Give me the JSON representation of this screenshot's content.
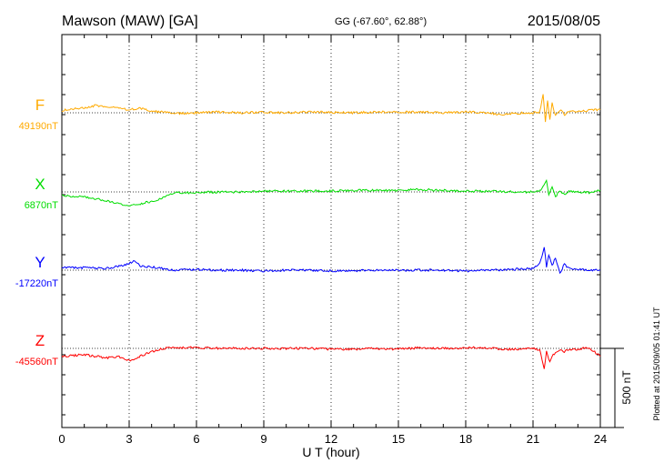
{
  "header": {
    "station": "Mawson (MAW)  [GA]",
    "coords": "GG (-67.60°,  62.88°)",
    "date": "2015/08/05"
  },
  "footer": {
    "plotted": "Plotted at 2015/09/05 01:41  UT"
  },
  "chart_data": {
    "type": "line",
    "title": "Mawson (MAW)  [GA]",
    "xlabel": "U T (hour)",
    "xlim": [
      0,
      24
    ],
    "xticks": [
      "0",
      "3",
      "6",
      "9",
      "12",
      "15",
      "18",
      "21",
      "24"
    ],
    "grid": true,
    "scale_bar": "500 nT",
    "series": [
      {
        "name": "F",
        "baseline_label": "49190nT",
        "color": "#ffaa00",
        "x": [
          0,
          0.5,
          1,
          1.5,
          2,
          2.5,
          3,
          3.5,
          4,
          4.5,
          5,
          6,
          7,
          8,
          9,
          10,
          11,
          12,
          13,
          14,
          15,
          16,
          17,
          18,
          19,
          19.5,
          20,
          21,
          21.3,
          21.45,
          21.55,
          21.65,
          21.75,
          21.85,
          22,
          22.2,
          22.4,
          22.6,
          23,
          23.5,
          24
        ],
        "y": [
          15,
          25,
          30,
          45,
          35,
          30,
          20,
          30,
          10,
          5,
          -5,
          0,
          5,
          0,
          5,
          0,
          5,
          3,
          0,
          5,
          3,
          5,
          0,
          5,
          0,
          -10,
          -5,
          0,
          5,
          120,
          -60,
          80,
          -40,
          60,
          -20,
          20,
          -10,
          5,
          10,
          15,
          20
        ]
      },
      {
        "name": "X",
        "baseline_label": "6870nT",
        "color": "#00dd00",
        "x": [
          0,
          1,
          2,
          2.5,
          3,
          3.5,
          4,
          4.5,
          5,
          6,
          7,
          8,
          9,
          10,
          11,
          12,
          13,
          14,
          15,
          16,
          17,
          18,
          19,
          20,
          21,
          21.3,
          21.6,
          21.7,
          21.85,
          22,
          22.2,
          22.4,
          22.6,
          23,
          23.5,
          24
        ],
        "y": [
          -25,
          -30,
          -55,
          -70,
          -90,
          -75,
          -60,
          -40,
          -5,
          -5,
          0,
          0,
          5,
          5,
          5,
          5,
          10,
          10,
          10,
          15,
          10,
          5,
          5,
          0,
          0,
          5,
          70,
          -20,
          30,
          -30,
          10,
          -15,
          5,
          0,
          -5,
          10
        ]
      },
      {
        "name": "Y",
        "baseline_label": "-17220nT",
        "color": "#0000ff",
        "x": [
          0,
          1,
          2,
          2.5,
          3,
          3.2,
          3.5,
          4,
          5,
          6,
          7,
          8,
          9,
          10,
          11,
          12,
          13,
          14,
          15,
          16,
          17,
          18,
          19,
          20,
          21,
          21.3,
          21.5,
          21.6,
          21.7,
          21.85,
          22,
          22.2,
          22.4,
          22.6,
          23,
          24
        ],
        "y": [
          20,
          15,
          10,
          25,
          40,
          60,
          25,
          20,
          0,
          5,
          0,
          0,
          -5,
          0,
          0,
          -5,
          -5,
          0,
          0,
          0,
          0,
          -5,
          0,
          5,
          10,
          40,
          150,
          20,
          100,
          30,
          80,
          -20,
          40,
          10,
          5,
          0
        ]
      },
      {
        "name": "Z",
        "baseline_label": "-45560nT",
        "color": "#ff0000",
        "x": [
          0,
          1,
          2,
          2.5,
          3,
          3.5,
          4,
          4.5,
          5,
          6,
          7,
          8,
          9,
          10,
          11,
          12,
          13,
          14,
          15,
          16,
          17,
          18,
          19,
          20,
          21,
          21.3,
          21.5,
          21.6,
          21.75,
          21.9,
          22,
          22.2,
          22.4,
          22.6,
          23,
          23.5,
          24
        ],
        "y": [
          -50,
          -40,
          -60,
          -50,
          -80,
          -50,
          -20,
          0,
          5,
          5,
          0,
          0,
          0,
          0,
          0,
          -5,
          -5,
          0,
          -5,
          5,
          0,
          5,
          0,
          -5,
          0,
          -10,
          -130,
          -20,
          -90,
          -40,
          -30,
          -10,
          -20,
          -10,
          -5,
          5,
          -50
        ]
      }
    ]
  }
}
